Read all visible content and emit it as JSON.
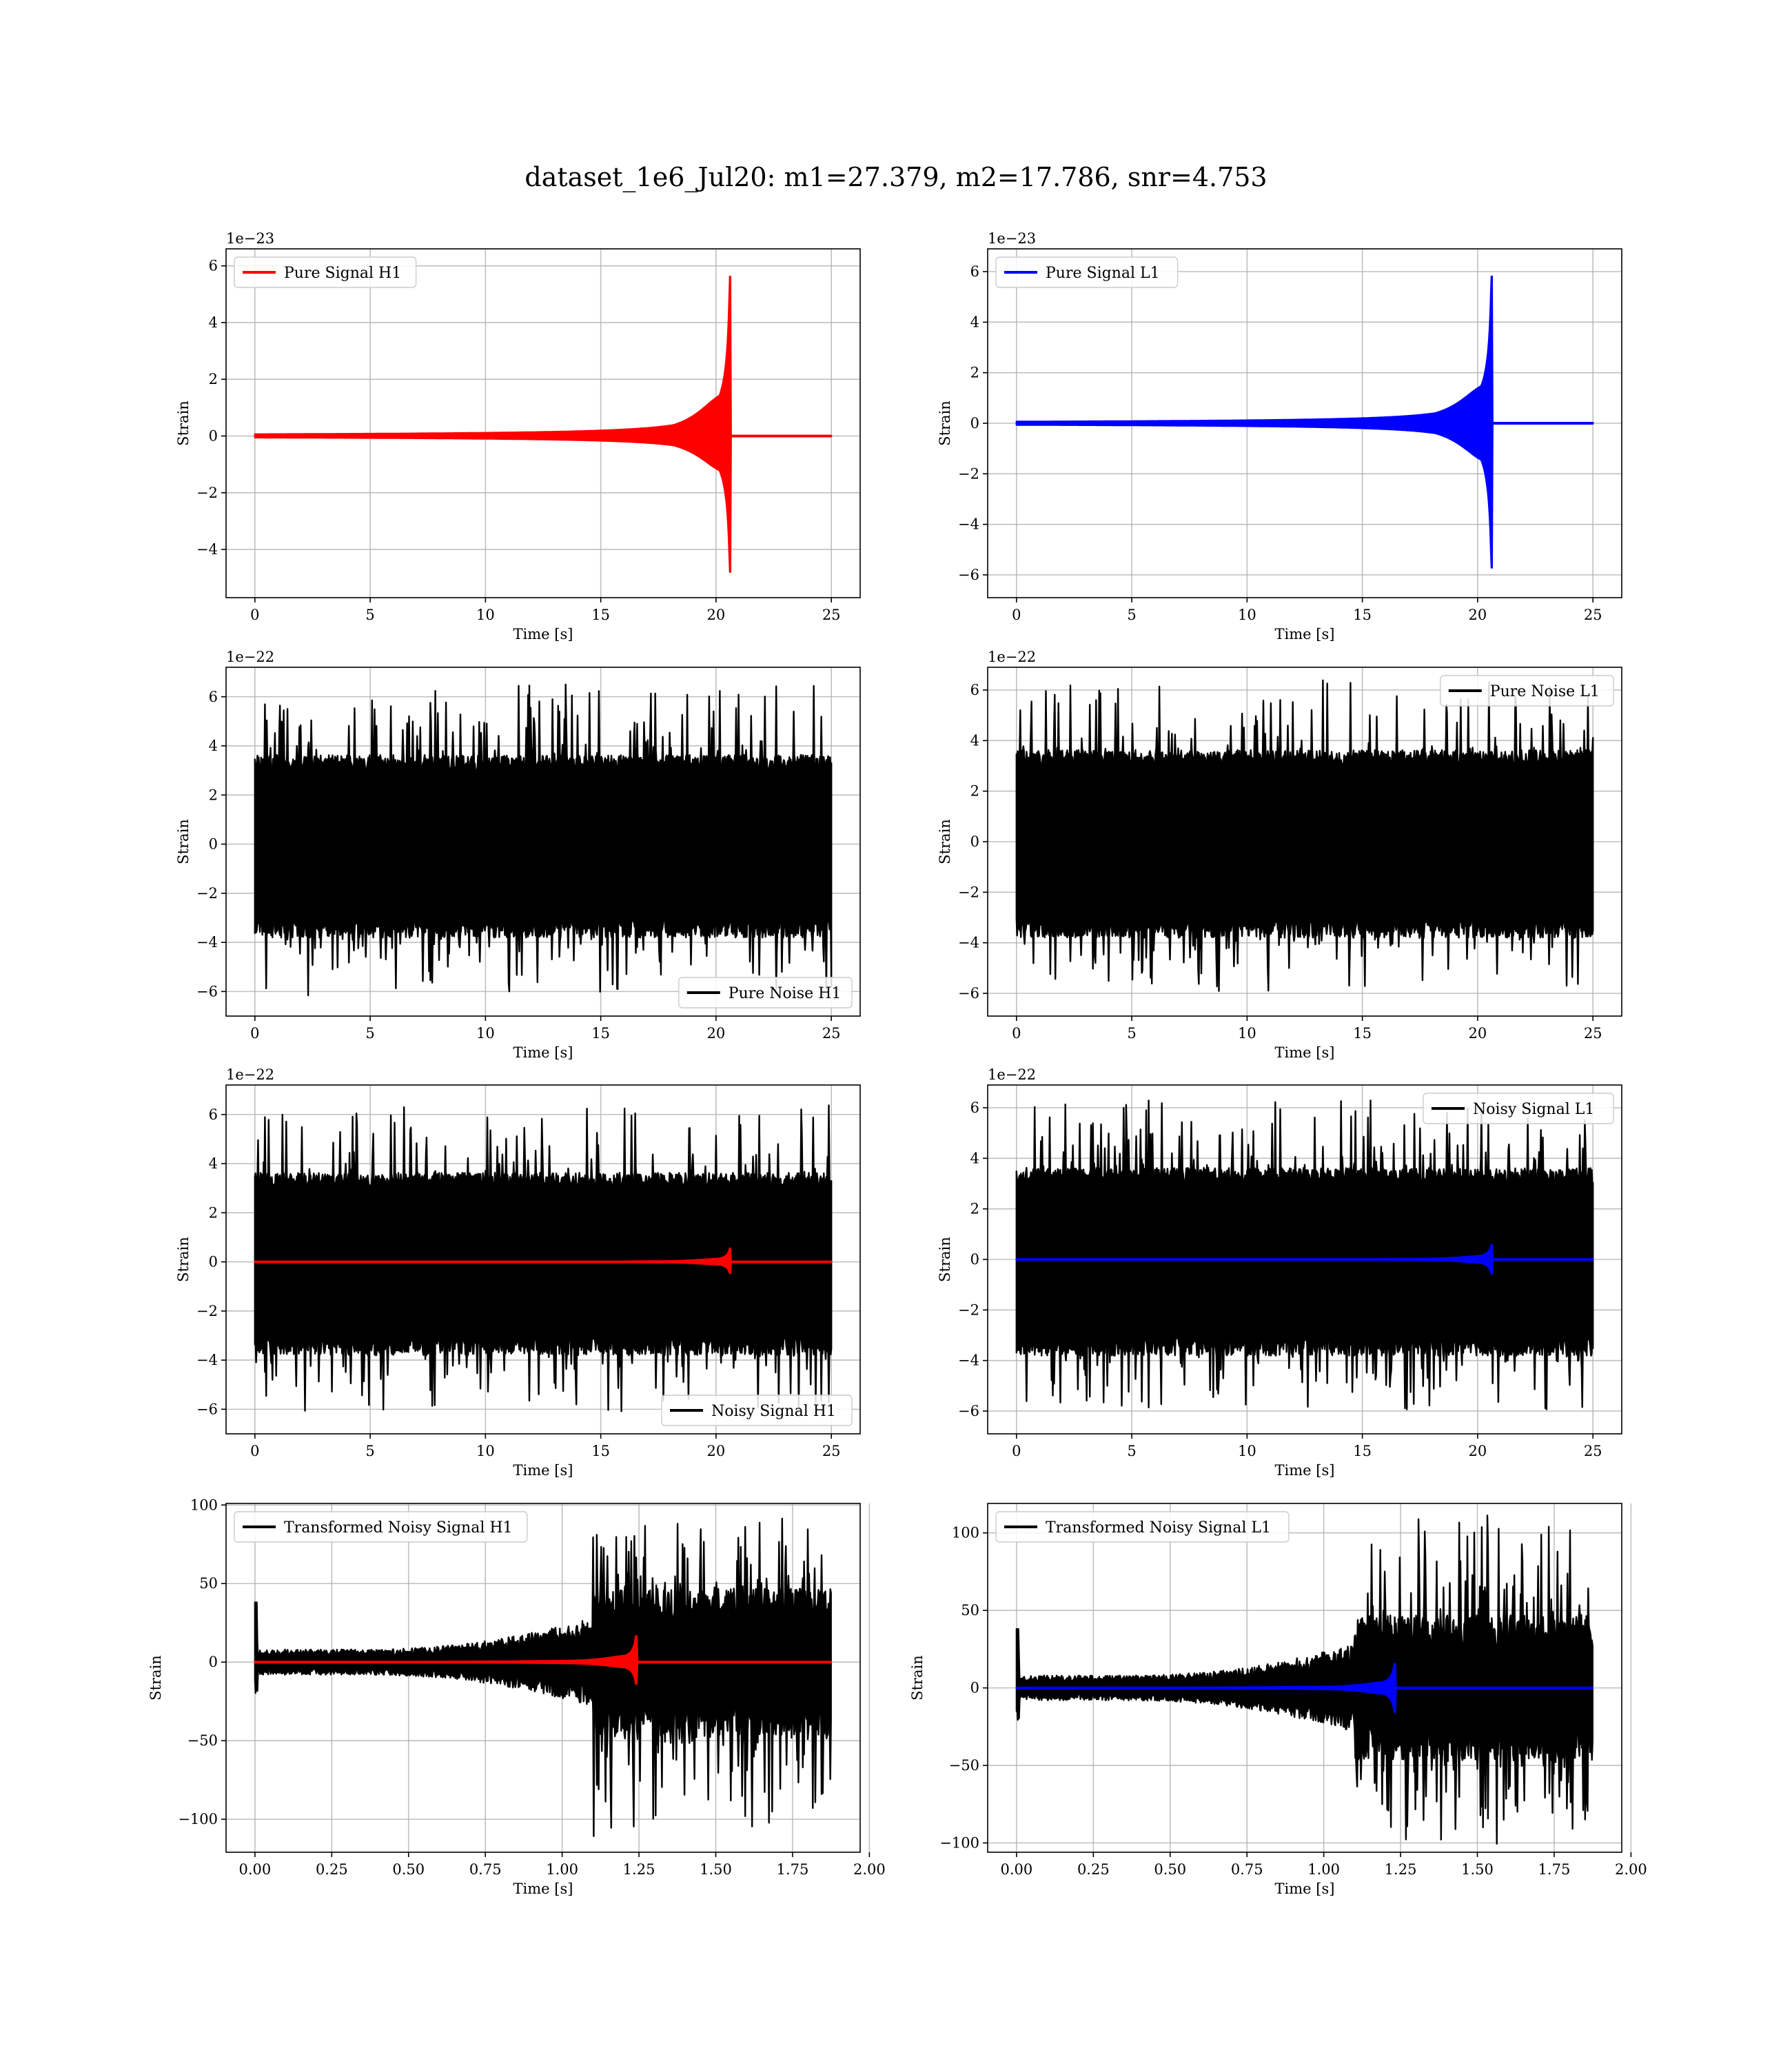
{
  "title": "dataset_1e6_Jul20: m1=27.379, m2=17.786, snr=4.753",
  "chart_data": [
    {
      "type": "line",
      "x_range": [
        0,
        25
      ],
      "xlim": [
        -1.25,
        26.25
      ],
      "x_ticks": [
        0,
        5,
        10,
        15,
        20,
        25
      ],
      "x_tick_labels": [
        "0",
        "5",
        "10",
        "15",
        "20",
        "25"
      ],
      "y_offset_text": "1e−23",
      "ylim": [
        -5.7,
        6.6
      ],
      "y_ticks": [
        -4,
        -2,
        0,
        2,
        4,
        6
      ],
      "y_tick_labels": [
        "−4",
        "−2",
        "0",
        "2",
        "4",
        "6"
      ],
      "xlabel": "Time [s]",
      "ylabel": "Strain",
      "grid": true,
      "legend_position": "upper left",
      "series": [
        {
          "name": "Pure Signal H1",
          "color": "#ff0000",
          "kind": "chirp",
          "amp_max": 6.1,
          "amp_min": -5.2,
          "merger_time": 20.6
        }
      ]
    },
    {
      "type": "line",
      "x_range": [
        0,
        25
      ],
      "xlim": [
        -1.25,
        26.25
      ],
      "x_ticks": [
        0,
        5,
        10,
        15,
        20,
        25
      ],
      "x_tick_labels": [
        "0",
        "5",
        "10",
        "15",
        "20",
        "25"
      ],
      "y_offset_text": "1e−23",
      "ylim": [
        -6.9,
        6.9
      ],
      "y_ticks": [
        -6,
        -4,
        -2,
        0,
        2,
        4,
        6
      ],
      "y_tick_labels": [
        "−6",
        "−4",
        "−2",
        "0",
        "2",
        "4",
        "6"
      ],
      "xlabel": "Time [s]",
      "ylabel": "Strain",
      "grid": true,
      "legend_position": "upper left",
      "series": [
        {
          "name": "Pure Signal L1",
          "color": "#0000ff",
          "kind": "chirp",
          "amp_max": 6.3,
          "amp_min": -6.2,
          "merger_time": 20.6
        }
      ]
    },
    {
      "type": "line",
      "x_range": [
        0,
        25
      ],
      "xlim": [
        -1.25,
        26.25
      ],
      "x_ticks": [
        0,
        5,
        10,
        15,
        20,
        25
      ],
      "x_tick_labels": [
        "0",
        "5",
        "10",
        "15",
        "20",
        "25"
      ],
      "y_offset_text": "1e−22",
      "ylim": [
        -7.0,
        7.2
      ],
      "y_ticks": [
        -6,
        -4,
        -2,
        0,
        2,
        4,
        6
      ],
      "y_tick_labels": [
        "−6",
        "−4",
        "−2",
        "0",
        "2",
        "4",
        "6"
      ],
      "xlabel": "Time [s]",
      "ylabel": "Strain",
      "grid": true,
      "legend_position": "lower right",
      "series": [
        {
          "name": "Pure Noise H1",
          "color": "#000000",
          "kind": "noise",
          "amp_max": 6.6,
          "amp_min": -6.2
        }
      ]
    },
    {
      "type": "line",
      "x_range": [
        0,
        25
      ],
      "xlim": [
        -1.25,
        26.25
      ],
      "x_ticks": [
        0,
        5,
        10,
        15,
        20,
        25
      ],
      "x_tick_labels": [
        "0",
        "5",
        "10",
        "15",
        "20",
        "25"
      ],
      "y_offset_text": "1e−22",
      "ylim": [
        -6.9,
        6.9
      ],
      "y_ticks": [
        -6,
        -4,
        -2,
        0,
        2,
        4,
        6
      ],
      "y_tick_labels": [
        "−6",
        "−4",
        "−2",
        "0",
        "2",
        "4",
        "6"
      ],
      "xlabel": "Time [s]",
      "ylabel": "Strain",
      "grid": true,
      "legend_position": "upper right",
      "series": [
        {
          "name": "Pure Noise L1",
          "color": "#000000",
          "kind": "noise",
          "amp_max": 6.4,
          "amp_min": -6.0
        }
      ]
    },
    {
      "type": "line",
      "x_range": [
        0,
        25
      ],
      "xlim": [
        -1.25,
        26.25
      ],
      "x_ticks": [
        0,
        5,
        10,
        15,
        20,
        25
      ],
      "x_tick_labels": [
        "0",
        "5",
        "10",
        "15",
        "20",
        "25"
      ],
      "y_offset_text": "1e−22",
      "ylim": [
        -7.0,
        7.2
      ],
      "y_ticks": [
        -6,
        -4,
        -2,
        0,
        2,
        4,
        6
      ],
      "y_tick_labels": [
        "−6",
        "−4",
        "−2",
        "0",
        "2",
        "4",
        "6"
      ],
      "xlabel": "Time [s]",
      "ylabel": "Strain",
      "grid": true,
      "legend_position": "lower right",
      "series": [
        {
          "name": "Noisy Signal H1",
          "color": "#000000",
          "kind": "noise",
          "amp_max": 6.6,
          "amp_min": -6.2
        },
        {
          "name": "",
          "color": "#ff0000",
          "kind": "chirp",
          "amp_max": 0.6,
          "amp_min": -0.5,
          "merger_time": 20.6
        }
      ]
    },
    {
      "type": "line",
      "x_range": [
        0,
        25
      ],
      "xlim": [
        -1.25,
        26.25
      ],
      "x_ticks": [
        0,
        5,
        10,
        15,
        20,
        25
      ],
      "x_tick_labels": [
        "0",
        "5",
        "10",
        "15",
        "20",
        "25"
      ],
      "y_offset_text": "1e−22",
      "ylim": [
        -6.9,
        6.9
      ],
      "y_ticks": [
        -6,
        -4,
        -2,
        0,
        2,
        4,
        6
      ],
      "y_tick_labels": [
        "−6",
        "−4",
        "−2",
        "0",
        "2",
        "4",
        "6"
      ],
      "xlabel": "Time [s]",
      "ylabel": "Strain",
      "grid": true,
      "legend_position": "upper right",
      "series": [
        {
          "name": "Noisy Signal L1",
          "color": "#000000",
          "kind": "noise",
          "amp_max": 6.4,
          "amp_min": -6.0
        },
        {
          "name": "",
          "color": "#0000ff",
          "kind": "chirp",
          "amp_max": 0.63,
          "amp_min": -0.62,
          "merger_time": 20.6
        }
      ]
    },
    {
      "type": "line",
      "x_range": [
        0,
        1.875
      ],
      "xlim": [
        -0.094,
        1.97
      ],
      "x_ticks": [
        0,
        0.25,
        0.5,
        0.75,
        1.0,
        1.25,
        1.5,
        1.75,
        2.0
      ],
      "x_tick_labels": [
        "0.00",
        "0.25",
        "0.50",
        "0.75",
        "1.00",
        "1.25",
        "1.50",
        "1.75",
        "2.00"
      ],
      "y_offset_text": "",
      "ylim": [
        -121,
        101
      ],
      "y_ticks": [
        -100,
        -50,
        0,
        50,
        100
      ],
      "y_tick_labels": [
        "−100",
        "−50",
        "0",
        "50",
        "100"
      ],
      "xlabel": "Time [s]",
      "ylabel": "Strain",
      "grid": true,
      "legend_position": "upper left",
      "series": [
        {
          "name": "Transformed Noisy Signal H1",
          "color": "#000000",
          "kind": "whitened",
          "amp_max": 93,
          "amp_min": -111,
          "transition_time": 1.1
        },
        {
          "name": "",
          "color": "#ff0000",
          "kind": "chirp",
          "amp_max": 18,
          "amp_min": -15,
          "merger_time": 1.24
        }
      ]
    },
    {
      "type": "line",
      "x_range": [
        0,
        1.875
      ],
      "xlim": [
        -0.094,
        1.97
      ],
      "x_ticks": [
        0,
        0.25,
        0.5,
        0.75,
        1.0,
        1.25,
        1.5,
        1.75,
        2.0
      ],
      "x_tick_labels": [
        "0.00",
        "0.25",
        "0.50",
        "0.75",
        "1.00",
        "1.25",
        "1.50",
        "1.75",
        "2.00"
      ],
      "y_offset_text": "",
      "ylim": [
        -106,
        119
      ],
      "y_ticks": [
        -100,
        -50,
        0,
        50,
        100
      ],
      "y_tick_labels": [
        "−100",
        "−50",
        "0",
        "50",
        "100"
      ],
      "xlabel": "Time [s]",
      "ylabel": "Strain",
      "grid": true,
      "legend_position": "upper left",
      "series": [
        {
          "name": "Transformed Noisy Signal L1",
          "color": "#000000",
          "kind": "whitened",
          "amp_max": 112,
          "amp_min": -101,
          "transition_time": 1.1
        },
        {
          "name": "",
          "color": "#0000ff",
          "kind": "chirp",
          "amp_max": 17,
          "amp_min": -17,
          "merger_time": 1.23
        }
      ]
    }
  ]
}
